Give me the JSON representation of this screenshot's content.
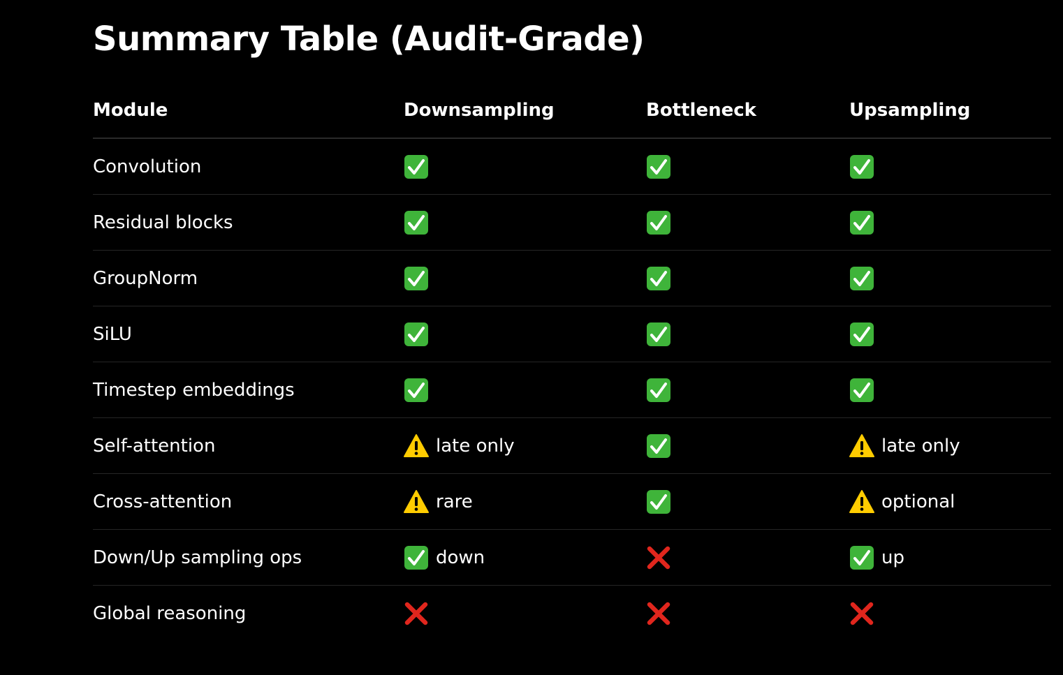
{
  "title": "Summary Table (Audit-Grade)",
  "colors": {
    "background": "#000000",
    "text": "#ffffff",
    "check": "#3fb43a",
    "warning": "#ffcc00",
    "cross": "#e0261d"
  },
  "table": {
    "headers": {
      "module": "Module",
      "downsampling": "Downsampling",
      "bottleneck": "Bottleneck",
      "upsampling": "Upsampling"
    },
    "rows": [
      {
        "module": "Convolution",
        "down": {
          "icon": "check-icon",
          "note": ""
        },
        "bottle": {
          "icon": "check-icon",
          "note": ""
        },
        "up": {
          "icon": "check-icon",
          "note": ""
        }
      },
      {
        "module": "Residual blocks",
        "down": {
          "icon": "check-icon",
          "note": ""
        },
        "bottle": {
          "icon": "check-icon",
          "note": ""
        },
        "up": {
          "icon": "check-icon",
          "note": ""
        }
      },
      {
        "module": "GroupNorm",
        "down": {
          "icon": "check-icon",
          "note": ""
        },
        "bottle": {
          "icon": "check-icon",
          "note": ""
        },
        "up": {
          "icon": "check-icon",
          "note": ""
        }
      },
      {
        "module": "SiLU",
        "down": {
          "icon": "check-icon",
          "note": ""
        },
        "bottle": {
          "icon": "check-icon",
          "note": ""
        },
        "up": {
          "icon": "check-icon",
          "note": ""
        }
      },
      {
        "module": "Timestep embeddings",
        "down": {
          "icon": "check-icon",
          "note": ""
        },
        "bottle": {
          "icon": "check-icon",
          "note": ""
        },
        "up": {
          "icon": "check-icon",
          "note": ""
        }
      },
      {
        "module": "Self-attention",
        "down": {
          "icon": "warning-icon",
          "note": "late only"
        },
        "bottle": {
          "icon": "check-icon",
          "note": ""
        },
        "up": {
          "icon": "warning-icon",
          "note": "late only"
        }
      },
      {
        "module": "Cross-attention",
        "down": {
          "icon": "warning-icon",
          "note": "rare"
        },
        "bottle": {
          "icon": "check-icon",
          "note": ""
        },
        "up": {
          "icon": "warning-icon",
          "note": "optional"
        }
      },
      {
        "module": "Down/Up sampling ops",
        "down": {
          "icon": "check-icon",
          "note": "down"
        },
        "bottle": {
          "icon": "cross-icon",
          "note": ""
        },
        "up": {
          "icon": "check-icon",
          "note": "up"
        }
      },
      {
        "module": "Global reasoning",
        "down": {
          "icon": "cross-icon",
          "note": ""
        },
        "bottle": {
          "icon": "cross-icon",
          "note": ""
        },
        "up": {
          "icon": "cross-icon",
          "note": ""
        }
      }
    ]
  }
}
